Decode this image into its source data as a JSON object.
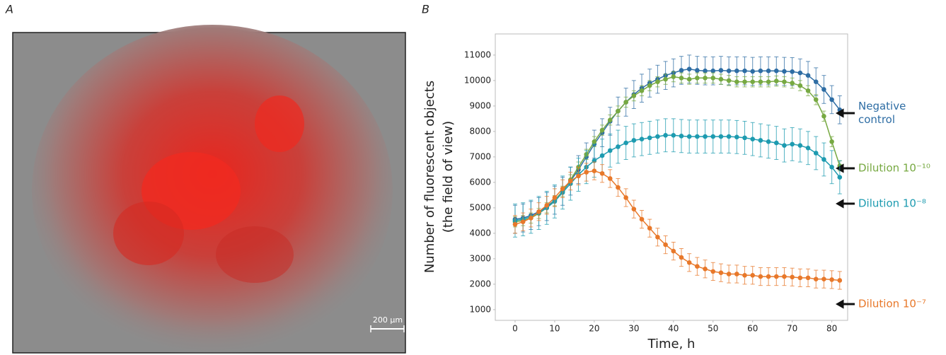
{
  "panel_labels": [
    "A",
    "B"
  ],
  "image": {
    "scale_bar": "200 µm"
  },
  "chart_data": {
    "type": "line",
    "x_label": "Time, h",
    "y_label": [
      "Number of fluorescent objects",
      "(the field of view)"
    ],
    "x": [
      0,
      2,
      4,
      6,
      8,
      10,
      12,
      14,
      16,
      18,
      20,
      22,
      24,
      26,
      28,
      30,
      32,
      34,
      36,
      38,
      40,
      42,
      44,
      46,
      48,
      50,
      52,
      54,
      56,
      58,
      60,
      62,
      64,
      66,
      68,
      70,
      72,
      74,
      76,
      78,
      80,
      82
    ],
    "xlim": [
      -5,
      84
    ],
    "xticks": [
      0,
      10,
      20,
      30,
      40,
      50,
      60,
      70,
      80
    ],
    "ylim": [
      580,
      11830
    ],
    "yticks": [
      1000,
      2000,
      3000,
      4000,
      5000,
      6000,
      7000,
      8000,
      9000,
      10000,
      11000
    ],
    "grid": false,
    "series": [
      {
        "name": "Negative control",
        "color": "#2e6da4",
        "error": 550,
        "values": [
          4550,
          4600,
          4700,
          4850,
          5050,
          5300,
          5650,
          6050,
          6500,
          7000,
          7500,
          7950,
          8400,
          8800,
          9150,
          9450,
          9700,
          9900,
          10050,
          10200,
          10300,
          10400,
          10450,
          10400,
          10380,
          10380,
          10400,
          10380,
          10380,
          10380,
          10360,
          10380,
          10380,
          10380,
          10360,
          10350,
          10300,
          10200,
          9950,
          9650,
          9250,
          8850
        ]
      },
      {
        "name": "Dilution 10⁻¹⁰",
        "color": "#77a942",
        "error": 200,
        "values": [
          4450,
          4500,
          4600,
          4780,
          5000,
          5280,
          5650,
          6100,
          6600,
          7100,
          7600,
          8050,
          8450,
          8800,
          9150,
          9400,
          9600,
          9800,
          9950,
          10050,
          10150,
          10100,
          10050,
          10100,
          10100,
          10100,
          10050,
          10000,
          9950,
          9950,
          9950,
          9950,
          9950,
          9980,
          9950,
          9900,
          9800,
          9600,
          9250,
          8600,
          7600,
          6650
        ]
      },
      {
        "name": "Dilution 10⁻⁸",
        "color": "#1d9bb0",
        "error": 650,
        "values": [
          4500,
          4550,
          4650,
          4800,
          5000,
          5250,
          5600,
          5950,
          6300,
          6600,
          6850,
          7050,
          7250,
          7400,
          7550,
          7650,
          7700,
          7750,
          7800,
          7850,
          7850,
          7820,
          7800,
          7800,
          7800,
          7800,
          7800,
          7800,
          7780,
          7750,
          7700,
          7650,
          7600,
          7550,
          7450,
          7500,
          7450,
          7350,
          7150,
          6900,
          6600,
          6200
        ]
      },
      {
        "name": "Dilution 10⁻⁷",
        "color": "#e8782a",
        "error": 350,
        "values": [
          4350,
          4450,
          4600,
          4850,
          5100,
          5400,
          5750,
          6050,
          6250,
          6400,
          6450,
          6350,
          6150,
          5800,
          5400,
          4950,
          4550,
          4200,
          3850,
          3550,
          3300,
          3050,
          2850,
          2700,
          2600,
          2500,
          2450,
          2400,
          2400,
          2350,
          2350,
          2300,
          2300,
          2300,
          2300,
          2280,
          2250,
          2250,
          2200,
          2200,
          2180,
          2150
        ]
      }
    ]
  }
}
